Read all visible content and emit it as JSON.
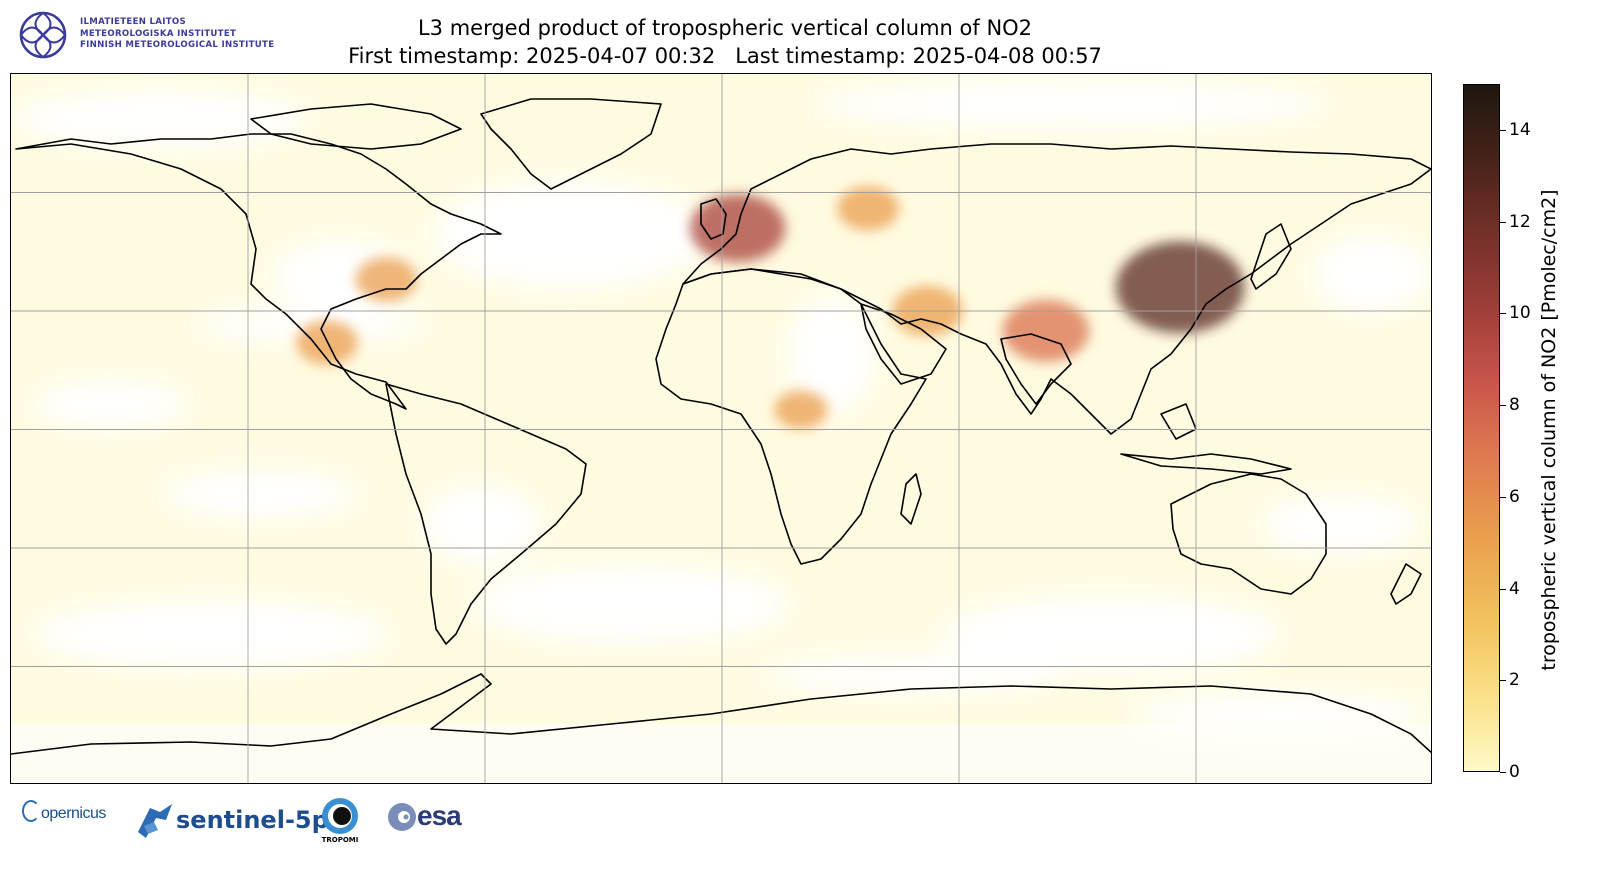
{
  "header": {
    "org_lines": [
      "ILMATIETEEN LAITOS",
      "METEOROLOGISKA INSTITUTET",
      "FINNISH METEOROLOGICAL INSTITUTE"
    ],
    "title_line1": "L3 merged product of tropospheric vertical column of NO2",
    "title_line2": "First timestamp: 2025-04-07 00:32   Last timestamp: 2025-04-08 00:57"
  },
  "map": {
    "projection": "plate-carree",
    "gridlines": true,
    "coastlines": true,
    "lon_gridlines": [
      -120,
      -60,
      0,
      60,
      120
    ],
    "lat_gridlines": [
      60,
      30,
      0,
      -30,
      -60
    ],
    "hotspots": [
      {
        "region": "Eastern China",
        "lon": 116,
        "lat": 36,
        "level": 12
      },
      {
        "region": "Northern India",
        "lon": 82,
        "lat": 25,
        "level": 7
      },
      {
        "region": "Western Europe",
        "lon": 4,
        "lat": 51,
        "level": 8
      },
      {
        "region": "Persian Gulf",
        "lon": 52,
        "lat": 30,
        "level": 5
      },
      {
        "region": "Eastern USA",
        "lon": -85,
        "lat": 38,
        "level": 4
      },
      {
        "region": "Mexico",
        "lon": -100,
        "lat": 22,
        "level": 4
      },
      {
        "region": "Central Africa",
        "lon": 20,
        "lat": 5,
        "level": 3
      },
      {
        "region": "Moscow",
        "lon": 37,
        "lat": 56,
        "level": 4
      }
    ]
  },
  "colorbar": {
    "label": "tropospheric vertical column of NO2 [Pmolec/cm2]",
    "min": 0,
    "max": 15,
    "ticks": [
      "0",
      "2",
      "4",
      "6",
      "8",
      "10",
      "12",
      "14"
    ],
    "colors": [
      "#fff9c7",
      "#f2c25d",
      "#dd7650",
      "#9c3d38",
      "#1e170f"
    ]
  },
  "logos": {
    "copernicus": "opernicus",
    "sentinel": "sentinel-5p",
    "tropomi": "TROPOMI",
    "esa": "esa"
  }
}
